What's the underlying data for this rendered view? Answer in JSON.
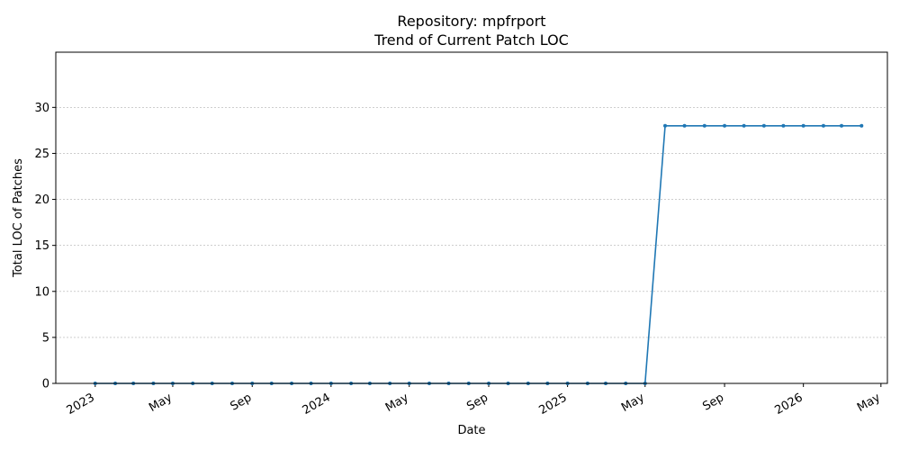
{
  "chart_data": {
    "type": "line",
    "title": "Repository: mpfrport",
    "subtitle": "Trend of Current Patch LOC",
    "xlabel": "Date",
    "ylabel": "Total LOC of Patches",
    "xlim": [
      "2022-11-01",
      "2026-05-11"
    ],
    "ylim": [
      0,
      36
    ],
    "yticks": [
      0,
      5,
      10,
      15,
      20,
      25,
      30
    ],
    "xticks": [
      {
        "date": "2023-01-01",
        "label": "2023"
      },
      {
        "date": "2023-05-01",
        "label": "May"
      },
      {
        "date": "2023-09-01",
        "label": "Sep"
      },
      {
        "date": "2024-01-01",
        "label": "2024"
      },
      {
        "date": "2024-05-01",
        "label": "May"
      },
      {
        "date": "2024-09-01",
        "label": "Sep"
      },
      {
        "date": "2025-01-01",
        "label": "2025"
      },
      {
        "date": "2025-05-01",
        "label": "May"
      },
      {
        "date": "2025-09-01",
        "label": "Sep"
      },
      {
        "date": "2026-01-01",
        "label": "2026"
      },
      {
        "date": "2026-05-01",
        "label": "May"
      }
    ],
    "grid": "y-dashed",
    "color": "#1f77b4",
    "series": [
      {
        "x": [
          "2023-01-01",
          "2023-02-01",
          "2023-03-01",
          "2023-04-01",
          "2023-05-01",
          "2023-06-01",
          "2023-07-01",
          "2023-08-01",
          "2023-09-01",
          "2023-10-01",
          "2023-11-01",
          "2023-12-01",
          "2024-01-01",
          "2024-02-01",
          "2024-03-01",
          "2024-04-01",
          "2024-05-01",
          "2024-06-01",
          "2024-07-01",
          "2024-08-01",
          "2024-09-01",
          "2024-10-01",
          "2024-11-01",
          "2024-12-01",
          "2025-01-01",
          "2025-02-01",
          "2025-03-01",
          "2025-04-01",
          "2025-05-01",
          "2025-06-01",
          "2025-07-01",
          "2025-08-01",
          "2025-09-01",
          "2025-10-01",
          "2025-11-01",
          "2025-12-01",
          "2026-01-01",
          "2026-02-01",
          "2026-03-01",
          "2026-04-01"
        ],
        "values": [
          0,
          0,
          0,
          0,
          0,
          0,
          0,
          0,
          0,
          0,
          0,
          0,
          0,
          0,
          0,
          0,
          0,
          0,
          0,
          0,
          0,
          0,
          0,
          0,
          0,
          0,
          0,
          0,
          0,
          28,
          28,
          28,
          28,
          28,
          28,
          28,
          28,
          28,
          28,
          28
        ]
      }
    ]
  }
}
